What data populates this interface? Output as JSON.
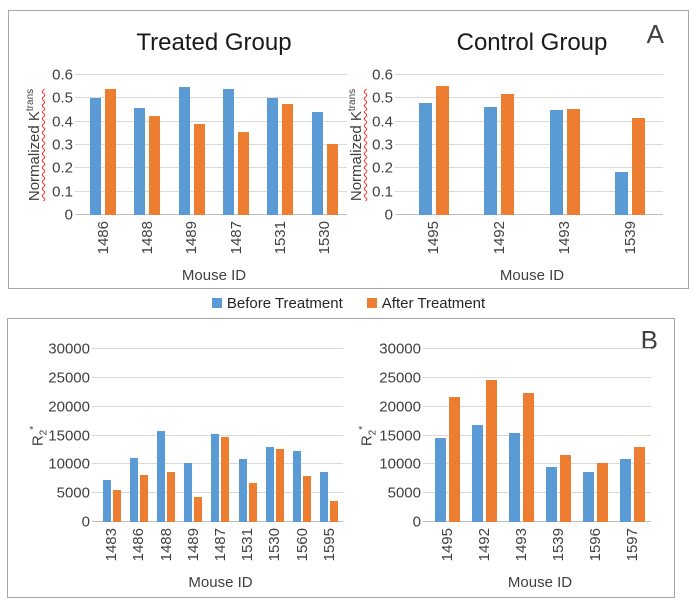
{
  "panels": [
    {
      "label": "A"
    },
    {
      "label": "B"
    }
  ],
  "legend": {
    "items": [
      {
        "label": "Before Treatment",
        "color": "#5B9BD5"
      },
      {
        "label": "After Treatment",
        "color": "#ED7D31"
      }
    ]
  },
  "colors": {
    "before": "#5B9BD5",
    "after": "#ED7D31",
    "squiggle": "#FF2A2A"
  },
  "chart_data": [
    {
      "type": "bar",
      "panel": "A",
      "title": "Treated Group",
      "xlabel": "Mouse ID",
      "ylabel": {
        "text": "Normalized K",
        "sup": "trans",
        "spellcheck_underline": true
      },
      "ylim": [
        0,
        0.6
      ],
      "yticks": [
        "0",
        "0.1",
        "0.2",
        "0.3",
        "0.4",
        "0.5",
        "0.6"
      ],
      "grid": true,
      "legend_position": "shared-bottom-of-panel-A",
      "categories": [
        "1486",
        "1488",
        "1489",
        "1487",
        "1531",
        "1530"
      ],
      "series": [
        {
          "name": "Before Treatment",
          "color": "#5B9BD5",
          "values": [
            0.5,
            0.46,
            0.55,
            0.54,
            0.5,
            0.44
          ]
        },
        {
          "name": "After Treatment",
          "color": "#ED7D31",
          "values": [
            0.54,
            0.425,
            0.39,
            0.355,
            0.475,
            0.305
          ]
        }
      ]
    },
    {
      "type": "bar",
      "panel": "A",
      "title": "Control Group",
      "xlabel": "Mouse ID",
      "ylabel": {
        "text": "Normalized K",
        "sup": "trans",
        "spellcheck_underline": true
      },
      "ylim": [
        0,
        0.6
      ],
      "yticks": [
        "0",
        "0.1",
        "0.2",
        "0.3",
        "0.4",
        "0.5",
        "0.6"
      ],
      "grid": true,
      "categories": [
        "1495",
        "1492",
        "1493",
        "1539"
      ],
      "series": [
        {
          "name": "Before Treatment",
          "color": "#5B9BD5",
          "values": [
            0.48,
            0.465,
            0.45,
            0.185
          ]
        },
        {
          "name": "After Treatment",
          "color": "#ED7D31",
          "values": [
            0.555,
            0.52,
            0.455,
            0.415
          ]
        }
      ]
    },
    {
      "type": "bar",
      "panel": "B",
      "title": "",
      "xlabel": "Mouse ID",
      "ylabel": {
        "text": "R",
        "sub": "2",
        "sup": "*",
        "spellcheck_underline": false
      },
      "ylim": [
        0,
        30000
      ],
      "yticks": [
        "0",
        "5000",
        "10000",
        "15000",
        "20000",
        "25000",
        "30000"
      ],
      "grid": true,
      "categories": [
        "1483",
        "1486",
        "1488",
        "1489",
        "1487",
        "1531",
        "1530",
        "1560",
        "1595"
      ],
      "series": [
        {
          "name": "Before Treatment",
          "color": "#5B9BD5",
          "values": [
            7300,
            11100,
            15800,
            10200,
            15300,
            10900,
            13000,
            12400,
            8600
          ]
        },
        {
          "name": "After Treatment",
          "color": "#ED7D31",
          "values": [
            5600,
            8200,
            8600,
            4300,
            14800,
            6700,
            12700,
            8000,
            3700
          ]
        }
      ]
    },
    {
      "type": "bar",
      "panel": "B",
      "title": "",
      "xlabel": "Mouse ID",
      "ylabel": {
        "text": "R",
        "sub": "2",
        "sup": "*",
        "spellcheck_underline": false
      },
      "ylim": [
        0,
        30000
      ],
      "yticks": [
        "0",
        "5000",
        "10000",
        "15000",
        "20000",
        "25000",
        "30000"
      ],
      "grid": true,
      "categories": [
        "1495",
        "1492",
        "1493",
        "1539",
        "1596",
        "1597"
      ],
      "series": [
        {
          "name": "Before Treatment",
          "color": "#5B9BD5",
          "values": [
            14500,
            16900,
            15500,
            9600,
            8600,
            10900
          ]
        },
        {
          "name": "After Treatment",
          "color": "#ED7D31",
          "values": [
            21700,
            24700,
            22400,
            11600,
            10300,
            13000
          ]
        }
      ]
    }
  ]
}
